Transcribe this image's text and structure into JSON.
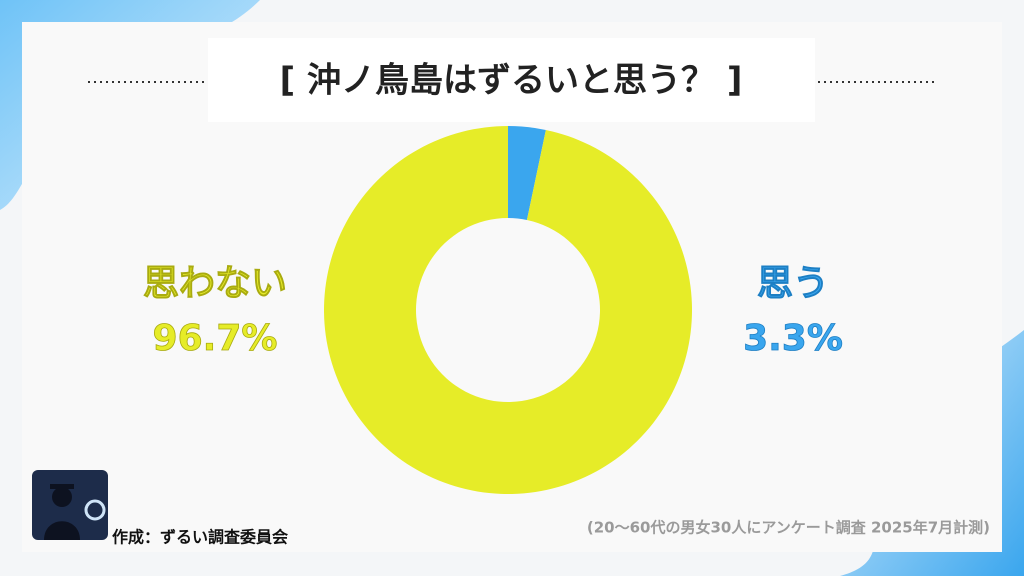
{
  "chart_data": {
    "type": "donut",
    "title": "[ 沖ノ鳥島はずるいと思う？ ]",
    "categories": [
      "思う",
      "思わない"
    ],
    "values": [
      3.3,
      96.7
    ],
    "value_labels": [
      "3.3%",
      "96.7%"
    ],
    "colors": [
      "#3aa6ee",
      "#e6ec28"
    ],
    "credit": "作成：ずるい調査委員会",
    "source": "(20〜60代の男女30人にアンケート調査 2025年7月計測)"
  }
}
